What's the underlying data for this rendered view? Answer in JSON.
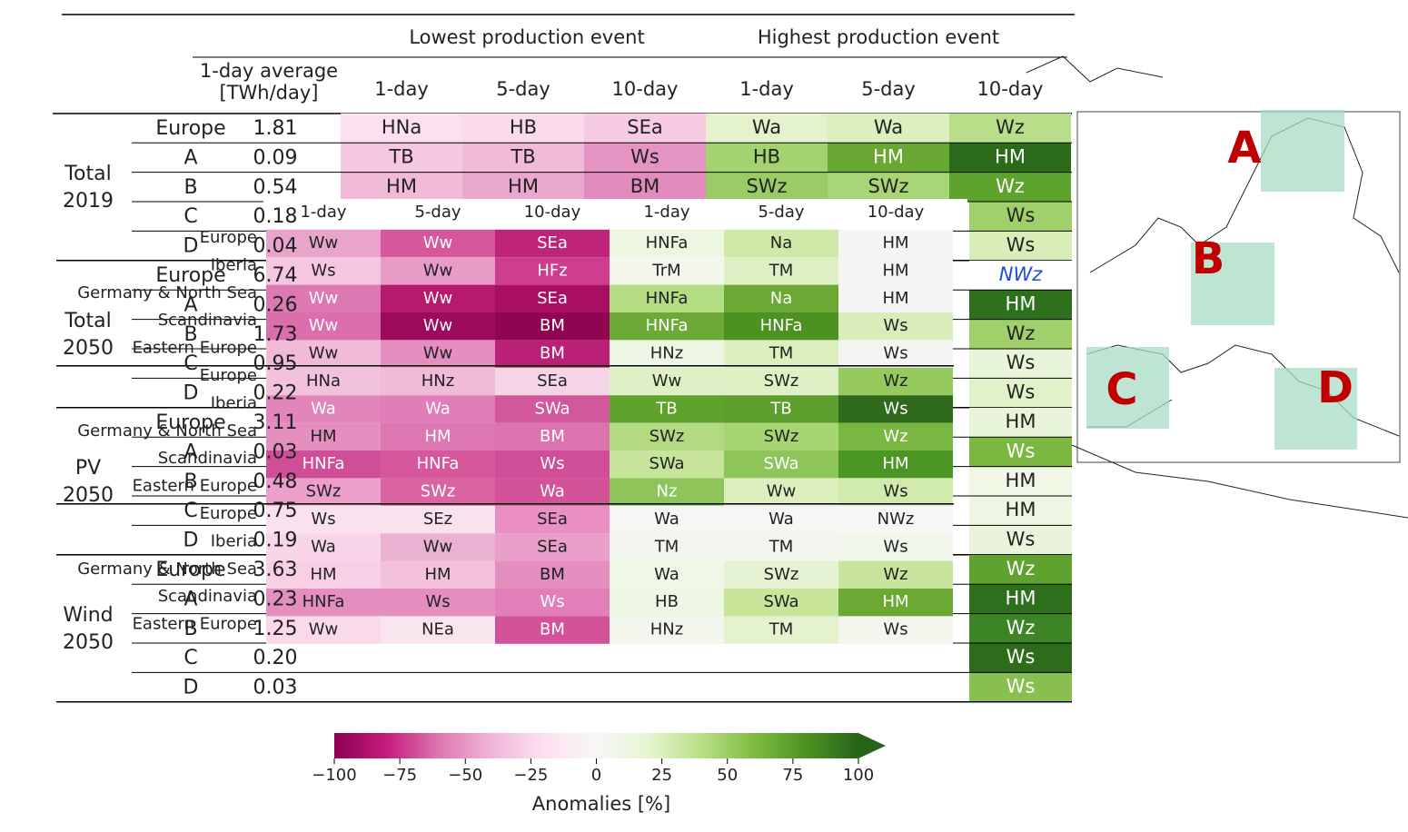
{
  "base": {
    "header": {
      "lowest": "Lowest production event",
      "highest": "Highest production event",
      "average": [
        "1-day average",
        "[TWh/day]"
      ],
      "columns": [
        "1-day",
        "5-day",
        "10-day",
        "1-day",
        "5-day",
        "10-day"
      ]
    },
    "groups": [
      {
        "label": [
          "Total",
          "2019"
        ],
        "rows": [
          {
            "region": "Europe",
            "value": "1.81",
            "cells": [
              "HNa",
              "HB",
              "SEa",
              "Wa",
              "Wa",
              "Wz"
            ],
            "colors": [
              "#fce0ef",
              "#fbdaec",
              "#f7cbe3",
              "#e5f3cd",
              "#dcefbf",
              "#b9de8a"
            ]
          },
          {
            "region": "A",
            "value": "0.09",
            "cells": [
              "TB",
              "TB",
              "Ws",
              "HB",
              "HM",
              "HM"
            ],
            "colors": [
              "#f5c7e1",
              "#f1bad9",
              "#e593c2",
              "#a3d36f",
              "#68a832",
              "#2a6a1a"
            ]
          },
          {
            "region": "B",
            "value": "0.54",
            "cells": [
              "HM",
              "HM",
              "BM",
              "SWz",
              "SWz",
              "Wz"
            ],
            "colors": [
              "#f1bad9",
              "#eaa7cf",
              "#e28bbd",
              "#99cc64",
              "#a8d575",
              "#5ea32d"
            ]
          },
          {
            "region": "C",
            "value": "0.18",
            "cells": [
              "Ws"
            ],
            "colors": [
              "#9fd06b"
            ]
          },
          {
            "region": "D",
            "value": "0.04",
            "cells": [
              "Ws"
            ],
            "colors": [
              "#d8edb8"
            ]
          }
        ]
      },
      {
        "label": [
          "Total",
          "2050"
        ],
        "rows": [
          {
            "region": "Europe",
            "value": "6.74",
            "cells": [
              "NWz"
            ],
            "colors": [
              "#ffffff"
            ]
          },
          {
            "region": "A",
            "value": "0.26",
            "cells": [
              "HM"
            ],
            "colors": [
              "#2f701d"
            ]
          },
          {
            "region": "B",
            "value": "1.73",
            "cells": [
              "Wz"
            ],
            "colors": [
              "#9fd06b"
            ]
          },
          {
            "region": "C",
            "value": "0.95",
            "cells": [
              "Ws"
            ],
            "colors": [
              "#e9f5d8"
            ]
          },
          {
            "region": "D",
            "value": "0.22",
            "cells": [
              "Ws"
            ],
            "colors": [
              "#e1f1c8"
            ]
          }
        ]
      },
      {
        "label": [
          "PV",
          "2050"
        ],
        "rows": [
          {
            "region": "Europe",
            "value": "3.11",
            "cells": [
              "HM"
            ],
            "colors": [
              "#e9f5d8"
            ]
          },
          {
            "region": "A",
            "value": "0.03",
            "cells": [
              "Ws"
            ],
            "colors": [
              "#7ab842"
            ]
          },
          {
            "region": "B",
            "value": "0.48",
            "cells": [
              "HM"
            ],
            "colors": [
              "#f0f7e6"
            ]
          },
          {
            "region": "C",
            "value": "0.75",
            "cells": [
              "HM"
            ],
            "colors": [
              "#eef6e1"
            ]
          },
          {
            "region": "D",
            "value": "0.19",
            "cells": [
              "Ws"
            ],
            "colors": [
              "#eaf4db"
            ]
          }
        ]
      },
      {
        "label": [
          "Wind",
          "2050"
        ],
        "rows": [
          {
            "region": "Europe",
            "value": "3.63",
            "cells": [
              "Wz"
            ],
            "colors": [
              "#5fa22e"
            ]
          },
          {
            "region": "A",
            "value": "0.23",
            "cells": [
              "HM"
            ],
            "colors": [
              "#2f6e1d"
            ]
          },
          {
            "region": "B",
            "value": "1.25",
            "cells": [
              "Wz"
            ],
            "colors": [
              "#3d8425"
            ]
          },
          {
            "region": "C",
            "value": "0.20",
            "cells": [
              "Ws"
            ],
            "colors": [
              "#2e6c1c"
            ]
          },
          {
            "region": "D",
            "value": "0.03",
            "cells": [
              "Ws"
            ],
            "colors": [
              "#88c04f"
            ]
          }
        ]
      }
    ]
  },
  "overlay": {
    "columns": [
      "1-day",
      "5-day",
      "10-day",
      "1-day",
      "5-day",
      "10-day"
    ],
    "rows": [
      {
        "region": "Europe",
        "cells": [
          "Ww",
          "Ww",
          "SEa",
          "HNFa",
          "Na",
          "HM"
        ],
        "colors": [
          "#e9a4cc",
          "#d6579c",
          "#c0237a",
          "#edf6e1",
          "#cfe9a8",
          "#f5f5f3"
        ]
      },
      {
        "region": "Iberia",
        "cells": [
          "Ws",
          "Ww",
          "HFz",
          "TrM",
          "TM",
          "HM"
        ],
        "colors": [
          "#f4c6e0",
          "#e79bc7",
          "#cd3c8d",
          "#f2f6ec",
          "#dff0c4",
          "#f4f5f2"
        ]
      },
      {
        "region": "Germany & North Sea",
        "cells": [
          "Ww",
          "Ww",
          "SEa",
          "HNFa",
          "Na",
          "HM"
        ],
        "colors": [
          "#dd79b2",
          "#b51a6e",
          "#a80f63",
          "#b4dc83",
          "#6ba834",
          "#f5f5f5"
        ]
      },
      {
        "region": "Scandinavia",
        "cells": [
          "Ww",
          "Ww",
          "BM",
          "HNFa",
          "HNFa",
          "Ws"
        ],
        "colors": [
          "#db6fad",
          "#9c0a5c",
          "#8f0552",
          "#6ea836",
          "#4e9123",
          "#d8edb9"
        ]
      },
      {
        "region": "Eastern Europe",
        "cells": [
          "Ww",
          "Ww",
          "BM",
          "HNz",
          "TM",
          "Ws"
        ],
        "colors": [
          "#f0bad8",
          "#e48fc0",
          "#bb2078",
          "#edf5e4",
          "#ddefbf",
          "#f4f5f2"
        ]
      },
      {
        "region": "Europe",
        "cells": [
          "HNa",
          "HNz",
          "SEa",
          "Ww",
          "SWz",
          "Wz"
        ],
        "colors": [
          "#f2c2dc",
          "#f0bbd9",
          "#f5d4e6",
          "#dff0c5",
          "#dff0c4",
          "#96ca5f"
        ]
      },
      {
        "region": "Iberia",
        "cells": [
          "Wa",
          "Wa",
          "SWa",
          "TB",
          "TB",
          "Ws"
        ],
        "colors": [
          "#e285bb",
          "#e07eb8",
          "#d3579b",
          "#5fa32e",
          "#5d9e2d",
          "#2f6a1c"
        ]
      },
      {
        "region": "Germany & North Sea",
        "cells": [
          "HM",
          "HM",
          "BM",
          "SWz",
          "SWz",
          "Wz"
        ],
        "colors": [
          "#e48fc0",
          "#dd77b1",
          "#dc74b0",
          "#b3d982",
          "#a6d572",
          "#7ab742"
        ]
      },
      {
        "region": "Scandinavia",
        "cells": [
          "HNFa",
          "HNFa",
          "Ws",
          "SWa",
          "SWa",
          "HM"
        ],
        "colors": [
          "#d04e97",
          "#d6579c",
          "#d04e97",
          "#c6e59b",
          "#8ec55a",
          "#4b9525"
        ]
      },
      {
        "region": "Eastern Europe",
        "cells": [
          "SWz",
          "SWz",
          "Wa",
          "Nz",
          "Ww",
          "Ws"
        ],
        "colors": [
          "#ec9fcb",
          "#d9649f",
          "#d3529a",
          "#8ec55a",
          "#ddefbf",
          "#d2eaad"
        ]
      },
      {
        "region": "Europe",
        "cells": [
          "Ws",
          "SEz",
          "SEa",
          "Wa",
          "Wa",
          "NWz"
        ],
        "colors": [
          "#f9e1ee",
          "#f9e1ee",
          "#e98fc2",
          "#f6f6f4",
          "#f6f6f4",
          "#f7f7f7"
        ]
      },
      {
        "region": "Iberia",
        "cells": [
          "Wa",
          "Ww",
          "SEa",
          "TM",
          "TM",
          "Ws"
        ],
        "colors": [
          "#f8d5e8",
          "#ebb1d3",
          "#e99fca",
          "#f3f6ef",
          "#f3f6ef",
          "#f1f6ea"
        ]
      },
      {
        "region": "Germany & North Sea",
        "cells": [
          "HM",
          "HM",
          "BM",
          "Wa",
          "SWz",
          "Wz"
        ],
        "colors": [
          "#f8cfe5",
          "#f3c1dc",
          "#e48fc0",
          "#f0f7e4",
          "#e5f2d1",
          "#c8e59e"
        ]
      },
      {
        "region": "Scandinavia",
        "cells": [
          "HNFa",
          "Ws",
          "Ws",
          "HB",
          "SWa",
          "HM"
        ],
        "colors": [
          "#e48fc0",
          "#e48fc0",
          "#e27fba",
          "#eef6e4",
          "#c8e69a",
          "#6ba834"
        ]
      },
      {
        "region": "Eastern Europe",
        "cells": [
          "Ww",
          "NEa",
          "BM",
          "HNz",
          "TM",
          "Ws"
        ],
        "colors": [
          "#f9d9ea",
          "#f8e5ee",
          "#d3529a",
          "#f2f6ec",
          "#e4f2cd",
          "#f2f6ec"
        ]
      }
    ]
  },
  "colorbar": {
    "label": "Anomalies [%]",
    "lim": [
      -100,
      100
    ],
    "ticks": [
      {
        "value": -100,
        "label": "−100"
      },
      {
        "value": -75,
        "label": "−75"
      },
      {
        "value": -50,
        "label": "−50"
      },
      {
        "value": -25,
        "label": "−25"
      },
      0,
      25,
      50,
      75,
      100
    ],
    "colors": [
      "#8e0152",
      "#c51b7d",
      "#de77ae",
      "#f1b6da",
      "#fde0ef",
      "#f7f7f7",
      "#e6f5d0",
      "#b8e186",
      "#7fbc41",
      "#4d9221",
      "#276419"
    ]
  },
  "map": {
    "labels": [
      "A",
      "B",
      "C",
      "D"
    ]
  }
}
